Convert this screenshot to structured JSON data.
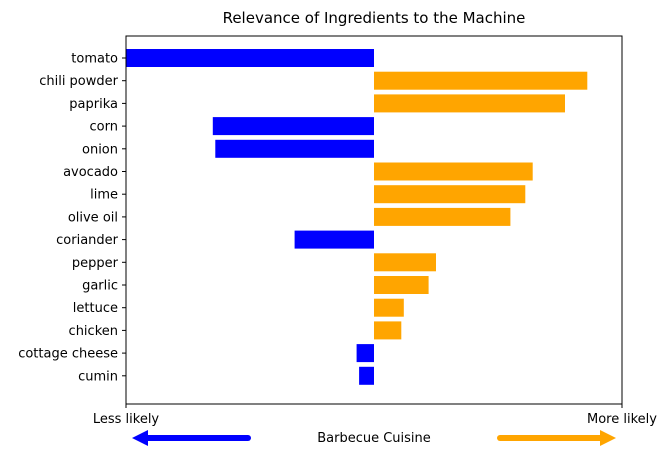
{
  "chart_data": {
    "type": "bar",
    "orientation": "horizontal",
    "title": "Relevance of Ingredients to the Machine",
    "xlabel": "Barbecue Cuisine",
    "ylabel": "",
    "x_tick_labels": {
      "left": "Less likely",
      "right": "More likely"
    },
    "xlim": [
      -1.0,
      1.0
    ],
    "grid": false,
    "legend": "none",
    "categories": [
      "tomato",
      "chili powder",
      "paprika",
      "corn",
      "onion",
      "avocado",
      "lime",
      "olive oil",
      "coriander",
      "pepper",
      "garlic",
      "lettuce",
      "chicken",
      "cottage cheese",
      "cumin"
    ],
    "values": [
      -1.0,
      0.86,
      0.77,
      -0.65,
      -0.64,
      0.64,
      0.61,
      0.55,
      -0.32,
      0.25,
      0.22,
      0.12,
      0.11,
      -0.07,
      -0.06
    ],
    "colors": {
      "positive": "#FFA500",
      "negative": "#0000FF"
    },
    "arrows": {
      "less_likely_color": "#0000FF",
      "more_likely_color": "#FFA500"
    }
  }
}
